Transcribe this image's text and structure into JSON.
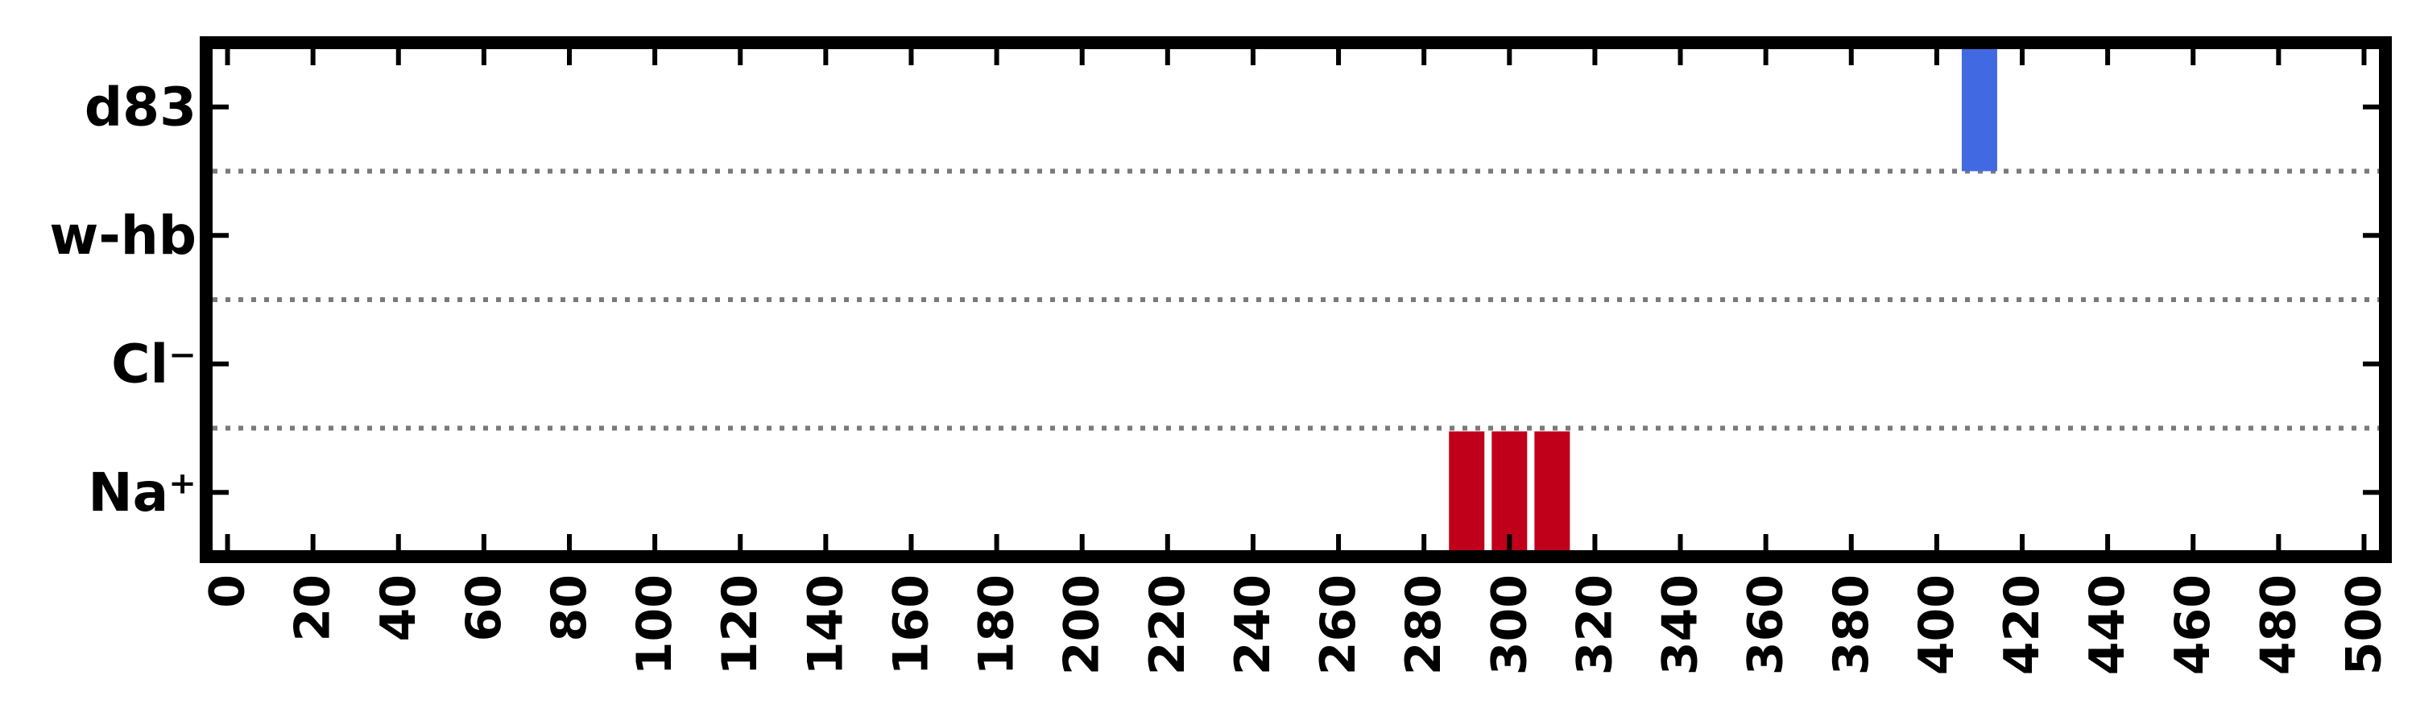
{
  "chart_data": {
    "type": "bar",
    "title": "",
    "xlabel": "",
    "ylabel": "",
    "xlim": [
      -5,
      505
    ],
    "x_ticks": [
      "0",
      "20",
      "40",
      "60",
      "80",
      "100",
      "120",
      "140",
      "160",
      "180",
      "200",
      "220",
      "240",
      "260",
      "280",
      "300",
      "320",
      "340",
      "360",
      "380",
      "400",
      "420",
      "440",
      "460",
      "480",
      "500"
    ],
    "categories": [
      "d83",
      "w-hb",
      "Cl⁻",
      "Na⁺"
    ],
    "grid": false,
    "separators": "dotted",
    "series": [
      {
        "category": "Na⁺",
        "color": "#c0001a",
        "x": [
          290,
          300,
          310
        ]
      },
      {
        "category": "d83",
        "color": "#4169e1",
        "x": [
          410
        ]
      }
    ]
  }
}
